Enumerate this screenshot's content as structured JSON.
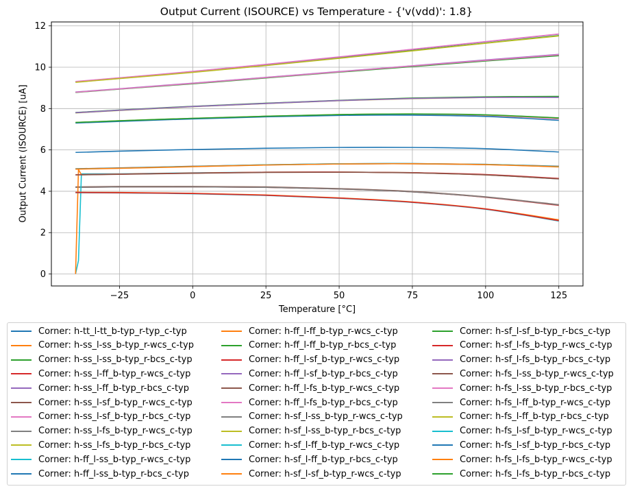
{
  "chart_data": {
    "type": "line",
    "title": "Output Current (ISOURCE) vs Temperature - {'v(vdd)': 1.8}",
    "xlabel": "Temperature [°C]",
    "ylabel": "Output Current (ISOURCE) [uA]",
    "xlim": [
      -48.25,
      133.25
    ],
    "ylim": [
      -0.58,
      12.19
    ],
    "xticks": [
      -25,
      0,
      25,
      50,
      75,
      100,
      125
    ],
    "yticks": [
      0,
      2,
      4,
      6,
      8,
      10,
      12
    ],
    "grid": true,
    "legend_placement": "bottom, outside, 3 columns",
    "x": [
      -40,
      -25,
      0,
      25,
      50,
      75,
      100,
      125
    ],
    "series": [
      {
        "name": "Corner: h-tt_l-tt_b-typ_r-typ_c-typ",
        "color": "#1f77b4",
        "values": [
          5.88,
          5.94,
          6.02,
          6.08,
          6.12,
          6.12,
          6.06,
          5.9
        ]
      },
      {
        "name": "Corner: h-ss_l-ss_b-typ_r-wcs_c-typ",
        "color": "#ff7f0e",
        "values": [
          4.2,
          4.22,
          4.22,
          4.2,
          4.12,
          3.98,
          3.72,
          3.33
        ]
      },
      {
        "name": "Corner: h-ss_l-ss_b-typ_r-bcs_c-typ",
        "color": "#2ca02c",
        "values": [
          9.28,
          9.46,
          9.76,
          10.09,
          10.45,
          10.81,
          11.17,
          11.53
        ]
      },
      {
        "name": "Corner: h-ss_l-ff_b-typ_r-wcs_c-typ",
        "color": "#d62728",
        "values": [
          4.19,
          4.21,
          4.21,
          4.19,
          4.11,
          3.97,
          3.71,
          3.32
        ]
      },
      {
        "name": "Corner: h-ss_l-ff_b-typ_r-bcs_c-typ",
        "color": "#9467bd",
        "values": [
          9.3,
          9.48,
          9.79,
          10.13,
          10.49,
          10.86,
          11.23,
          11.6
        ]
      },
      {
        "name": "Corner: h-ss_l-sf_b-typ_r-wcs_c-typ",
        "color": "#8c564b",
        "values": [
          4.21,
          4.23,
          4.23,
          4.21,
          4.13,
          3.99,
          3.73,
          3.35
        ]
      },
      {
        "name": "Corner: h-ss_l-sf_b-typ_r-bcs_c-typ",
        "color": "#e377c2",
        "values": [
          9.31,
          9.49,
          9.8,
          10.14,
          10.5,
          10.87,
          11.24,
          11.61
        ]
      },
      {
        "name": "Corner: h-ss_l-fs_b-typ_r-wcs_c-typ",
        "color": "#7f7f7f",
        "values": [
          4.19,
          4.21,
          4.21,
          4.19,
          4.11,
          3.97,
          3.72,
          3.34
        ]
      },
      {
        "name": "Corner: h-ss_l-fs_b-typ_r-bcs_c-typ",
        "color": "#bcbd22",
        "values": [
          9.27,
          9.45,
          9.75,
          10.08,
          10.43,
          10.79,
          11.16,
          11.51
        ]
      },
      {
        "name": "Corner: h-ff_l-ss_b-typ_r-wcs_c-typ",
        "color": "#17becf",
        "x": [
          -40,
          -39,
          -38,
          -25,
          0,
          25,
          50,
          75,
          100,
          125
        ],
        "values": [
          0.0,
          0.65,
          4.84,
          4.84,
          4.89,
          4.92,
          4.93,
          4.9,
          4.8,
          4.6
        ]
      },
      {
        "name": "Corner: h-ff_l-ss_b-typ_r-bcs_c-typ",
        "color": "#1f77b4",
        "values": [
          8.79,
          8.95,
          9.22,
          9.5,
          9.78,
          10.06,
          10.34,
          10.61
        ]
      },
      {
        "name": "Corner: h-ff_l-ff_b-typ_r-wcs_c-typ",
        "color": "#ff7f0e",
        "x": [
          -40,
          -39,
          -38,
          -25,
          0,
          25,
          50,
          75,
          100,
          125
        ],
        "values": [
          0.0,
          5.05,
          4.8,
          4.83,
          4.88,
          4.92,
          4.93,
          4.9,
          4.8,
          4.61
        ]
      },
      {
        "name": "Corner: h-ff_l-ff_b-typ_r-bcs_c-typ",
        "color": "#2ca02c",
        "values": [
          8.78,
          8.94,
          9.2,
          9.48,
          9.76,
          10.03,
          10.3,
          10.56
        ]
      },
      {
        "name": "Corner: h-ff_l-sf_b-typ_r-wcs_c-typ",
        "color": "#d62728",
        "values": [
          4.8,
          4.83,
          4.88,
          4.92,
          4.93,
          4.9,
          4.81,
          4.62
        ]
      },
      {
        "name": "Corner: h-ff_l-sf_b-typ_r-bcs_c-typ",
        "color": "#9467bd",
        "values": [
          8.8,
          8.96,
          9.23,
          9.51,
          9.79,
          10.07,
          10.35,
          10.62
        ]
      },
      {
        "name": "Corner: h-ff_l-fs_b-typ_r-wcs_c-typ",
        "color": "#8c564b",
        "values": [
          4.79,
          4.82,
          4.87,
          4.91,
          4.92,
          4.89,
          4.79,
          4.6
        ]
      },
      {
        "name": "Corner: h-ff_l-fs_b-typ_r-bcs_c-typ",
        "color": "#e377c2",
        "values": [
          8.79,
          8.95,
          9.22,
          9.5,
          9.78,
          10.06,
          10.33,
          10.6
        ]
      },
      {
        "name": "Corner: h-sf_l-ss_b-typ_r-wcs_c-typ",
        "color": "#7f7f7f",
        "values": [
          3.94,
          3.93,
          3.89,
          3.81,
          3.67,
          3.47,
          3.14,
          2.6
        ]
      },
      {
        "name": "Corner: h-sf_l-ss_b-typ_r-bcs_c-typ",
        "color": "#bcbd22",
        "values": [
          7.79,
          7.91,
          8.09,
          8.24,
          8.38,
          8.48,
          8.54,
          8.55
        ]
      },
      {
        "name": "Corner: h-sf_l-ff_b-typ_r-wcs_c-typ",
        "color": "#17becf",
        "values": [
          3.93,
          3.92,
          3.88,
          3.8,
          3.66,
          3.46,
          3.13,
          2.56
        ]
      },
      {
        "name": "Corner: h-sf_l-ff_b-typ_r-bcs_c-typ",
        "color": "#1f77b4",
        "values": [
          7.8,
          7.92,
          8.1,
          8.25,
          8.39,
          8.5,
          8.56,
          8.58
        ]
      },
      {
        "name": "Corner: h-sf_l-sf_b-typ_r-wcs_c-typ",
        "color": "#ff7f0e",
        "values": [
          3.95,
          3.94,
          3.9,
          3.82,
          3.68,
          3.48,
          3.15,
          2.62
        ]
      },
      {
        "name": "Corner: h-sf_l-sf_b-typ_r-bcs_c-typ",
        "color": "#2ca02c",
        "values": [
          7.81,
          7.93,
          8.11,
          8.26,
          8.4,
          8.51,
          8.57,
          8.59
        ]
      },
      {
        "name": "Corner: h-sf_l-fs_b-typ_r-wcs_c-typ",
        "color": "#d62728",
        "values": [
          3.94,
          3.93,
          3.89,
          3.81,
          3.67,
          3.47,
          3.14,
          2.58
        ]
      },
      {
        "name": "Corner: h-sf_l-fs_b-typ_r-bcs_c-typ",
        "color": "#9467bd",
        "values": [
          7.8,
          7.92,
          8.1,
          8.25,
          8.39,
          8.49,
          8.54,
          8.54
        ]
      },
      {
        "name": "Corner: h-fs_l-ss_b-typ_r-wcs_c-typ",
        "color": "#8c564b",
        "values": [
          5.09,
          5.13,
          5.21,
          5.28,
          5.33,
          5.34,
          5.3,
          5.21
        ]
      },
      {
        "name": "Corner: h-fs_l-ss_b-typ_r-bcs_c-typ",
        "color": "#e377c2",
        "values": [
          7.32,
          7.4,
          7.52,
          7.62,
          7.7,
          7.73,
          7.67,
          7.5
        ]
      },
      {
        "name": "Corner: h-fs_l-ff_b-typ_r-wcs_c-typ",
        "color": "#7f7f7f",
        "values": [
          5.08,
          5.12,
          5.2,
          5.27,
          5.32,
          5.33,
          5.29,
          5.19
        ]
      },
      {
        "name": "Corner: h-fs_l-ff_b-typ_r-bcs_c-typ",
        "color": "#bcbd22",
        "values": [
          7.33,
          7.41,
          7.53,
          7.63,
          7.71,
          7.74,
          7.69,
          7.54
        ]
      },
      {
        "name": "Corner: h-fs_l-sf_b-typ_r-wcs_c-typ",
        "color": "#17becf",
        "values": [
          5.08,
          5.12,
          5.2,
          5.28,
          5.33,
          5.34,
          5.3,
          5.2
        ]
      },
      {
        "name": "Corner: h-fs_l-sf_b-typ_r-bcs_c-typ",
        "color": "#1f77b4",
        "values": [
          7.3,
          7.38,
          7.5,
          7.6,
          7.67,
          7.68,
          7.62,
          7.43
        ]
      },
      {
        "name": "Corner: h-fs_l-fs_b-typ_r-wcs_c-typ",
        "color": "#ff7f0e",
        "values": [
          5.07,
          5.11,
          5.19,
          5.27,
          5.32,
          5.33,
          5.29,
          5.18
        ]
      },
      {
        "name": "Corner: h-fs_l-fs_b-typ_r-bcs_c-typ",
        "color": "#2ca02c",
        "values": [
          7.33,
          7.41,
          7.53,
          7.63,
          7.71,
          7.74,
          7.7,
          7.55
        ]
      }
    ]
  }
}
